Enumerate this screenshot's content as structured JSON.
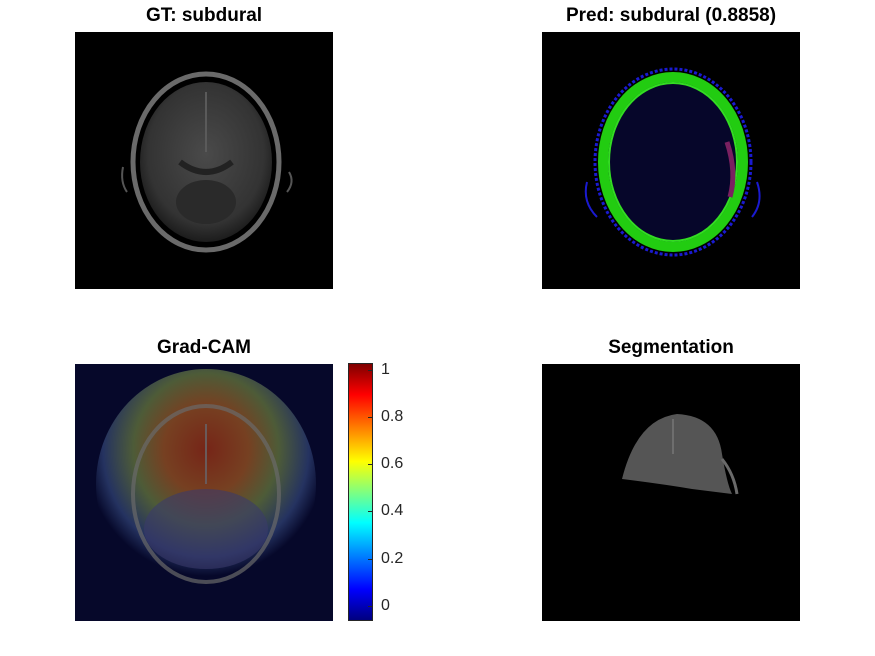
{
  "figure": {
    "panels": [
      {
        "id": "gt",
        "title": "GT: subdural",
        "content": "ct-slice"
      },
      {
        "id": "pred",
        "title": "Pred: subdural (0.8858)",
        "content": "edge-overlay"
      },
      {
        "id": "gradcam",
        "title": "Grad-CAM",
        "content": "heatmap-overlay"
      },
      {
        "id": "seg",
        "title": "Segmentation",
        "content": "segmented-region"
      }
    ],
    "colorbar": {
      "colormap": "jet",
      "range": [
        0,
        1
      ],
      "ticks": [
        "0",
        "0.2",
        "0.4",
        "0.6",
        "0.8",
        "1"
      ],
      "colors": [
        "#00007f",
        "#0000ff",
        "#00ffff",
        "#ffff00",
        "#ff0000",
        "#7f0000"
      ]
    },
    "overlay_colors": {
      "edge": "#22cc11",
      "outer_edge": "#1a1ad0",
      "hot": "#7a1a0a"
    }
  }
}
